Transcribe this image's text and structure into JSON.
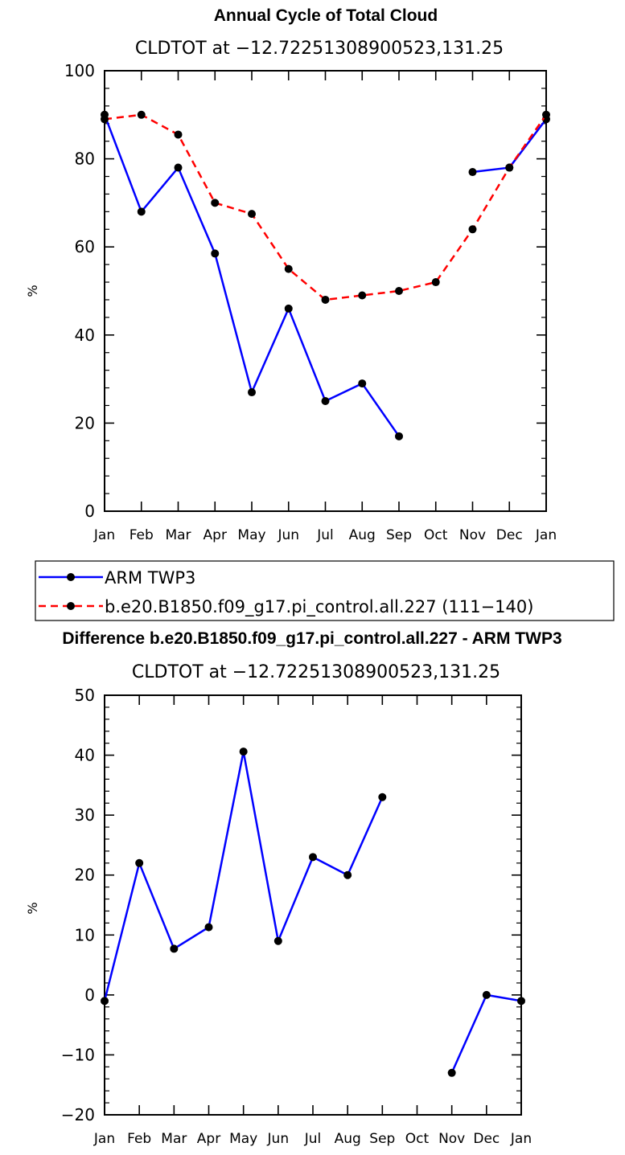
{
  "chart_data": [
    {
      "type": "line",
      "title": "Annual Cycle of Total Cloud",
      "subtitle": "CLDTOT at −12.72251308900523,131.25",
      "xlabel": "",
      "ylabel": "%",
      "categories": [
        "Jan",
        "Feb",
        "Mar",
        "Apr",
        "May",
        "Jun",
        "Jul",
        "Aug",
        "Sep",
        "Oct",
        "Nov",
        "Dec",
        "Jan"
      ],
      "ylim": [
        0,
        100
      ],
      "yticks": [
        "0",
        "20",
        "40",
        "60",
        "80",
        "100"
      ],
      "series": [
        {
          "name": "ARM TWP3",
          "color": "#0000ff",
          "dash": "solid",
          "values": [
            90,
            68,
            78,
            58.5,
            27,
            46,
            25,
            29,
            17,
            null,
            77,
            78,
            89
          ]
        },
        {
          "name": "b.e20.B1850.f09_g17.pi_control.all.227 (111−140)",
          "color": "#ff0000",
          "dash": "dashed",
          "values": [
            89,
            90,
            85.5,
            70,
            67.5,
            55,
            48,
            49,
            50,
            52,
            64,
            78,
            90
          ]
        }
      ],
      "legend": {
        "entries": [
          "ARM TWP3",
          "b.e20.B1850.f09_g17.pi_control.all.227 (111−140)"
        ],
        "placement": "below"
      }
    },
    {
      "type": "line",
      "title": "Difference b.e20.B1850.f09_g17.pi_control.all.227 - ARM TWP3",
      "subtitle": "CLDTOT at −12.72251308900523,131.25",
      "xlabel": "",
      "ylabel": "%",
      "categories": [
        "Jan",
        "Feb",
        "Mar",
        "Apr",
        "May",
        "Jun",
        "Jul",
        "Aug",
        "Sep",
        "Oct",
        "Nov",
        "Dec",
        "Jan"
      ],
      "ylim": [
        -20,
        50
      ],
      "yticks": [
        "−20",
        "−10",
        "0",
        "10",
        "20",
        "30",
        "40",
        "50"
      ],
      "series": [
        {
          "name": "Difference",
          "color": "#0000ff",
          "dash": "solid",
          "values": [
            -1,
            22,
            7.7,
            11.3,
            40.6,
            9,
            23,
            20,
            33,
            null,
            -13,
            0,
            -1
          ]
        }
      ]
    }
  ]
}
